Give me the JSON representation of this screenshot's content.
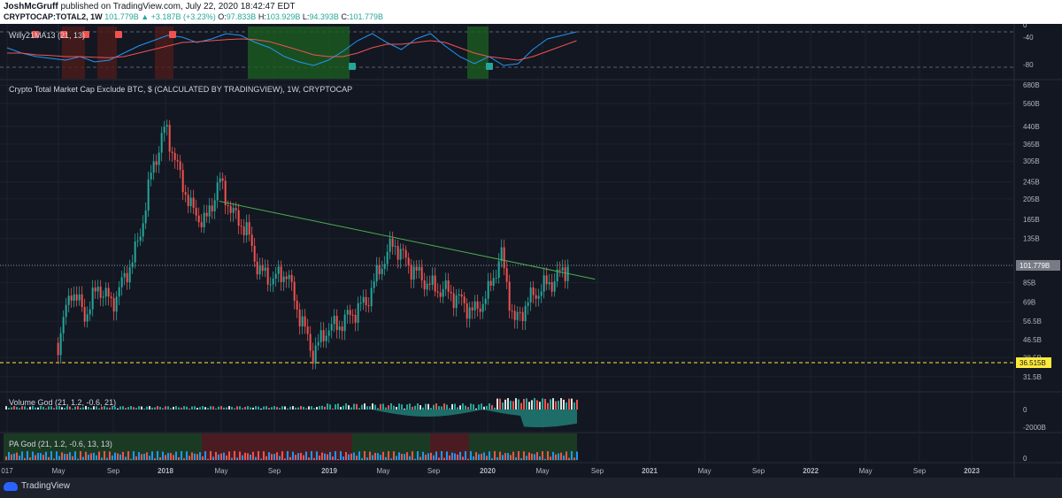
{
  "header": {
    "author": "JoshMcGruff",
    "published": "published on TradingView.com, July 22, 2020 18:42:47 EDT",
    "symbol": "CRYPTOCAP:TOTAL2, 1W",
    "last": "101.779B",
    "change": "▲ +3.187B (+3.23%)",
    "o_label": "O:",
    "o": "97.833B",
    "h_label": "H:",
    "h": "103.929B",
    "l_label": "L:",
    "l": "94.393B",
    "c_label": "C:",
    "c": "101.779B"
  },
  "panes": {
    "willy": {
      "title": "Willy21MA13 (21, 13)",
      "ticks": [
        "0",
        "-40",
        "-80"
      ]
    },
    "main": {
      "title": "Crypto Total Market Cap Exclude BTC, $ (CALCULATED BY TRADINGVIEW), 1W, CRYPTOCAP"
    },
    "volume": {
      "title": "Volume God (21, 1.2, -0.6, 21)",
      "ticks": [
        "0",
        "-2000B"
      ]
    },
    "pa": {
      "title": "PA God (21, 1.2, -0.6, 13, 13)",
      "ticks": [
        "0"
      ]
    }
  },
  "footer": {
    "brand": "TradingView"
  },
  "colors": {
    "up": "#26a69a",
    "down": "#ef5350",
    "trendline": "#4caf50",
    "support": "#ffeb3b",
    "willy_blue": "#2196f3",
    "willy_red": "#ef5350"
  },
  "chart_data": {
    "type": "line",
    "title": "Crypto Total Market Cap Exclude BTC, $ (CALCULATED BY TRADINGVIEW), 1W, CRYPTOCAP",
    "scale": "log",
    "y_unit": "B USD",
    "y_ticks": [
      "680B",
      "560B",
      "440B",
      "365B",
      "305B",
      "245B",
      "205B",
      "165B",
      "135B",
      "101.779B",
      "85B",
      "69B",
      "56.5B",
      "46.5B",
      "38.5B",
      "31.5B"
    ],
    "x_ticks": [
      "017",
      "May",
      "Sep",
      "2018",
      "May",
      "Sep",
      "2019",
      "May",
      "Sep",
      "2020",
      "May",
      "Sep",
      "2021",
      "May",
      "Sep",
      "2022",
      "May",
      "Sep",
      "2023"
    ],
    "current_price": 101.779,
    "support_level": 36.515,
    "support_label": "36.515B",
    "trendline": [
      {
        "date": "2018-05",
        "value": 200
      },
      {
        "date": "2020-09",
        "value": 88
      }
    ],
    "weekly_close": [
      {
        "date": "2017-05",
        "value": 45
      },
      {
        "date": "2017-06",
        "value": 80
      },
      {
        "date": "2017-07",
        "value": 60
      },
      {
        "date": "2017-08",
        "value": 82
      },
      {
        "date": "2017-09",
        "value": 68
      },
      {
        "date": "2017-10",
        "value": 90
      },
      {
        "date": "2017-11",
        "value": 130
      },
      {
        "date": "2017-12",
        "value": 280
      },
      {
        "date": "2018-01",
        "value": 440
      },
      {
        "date": "2018-02",
        "value": 270
      },
      {
        "date": "2018-03",
        "value": 180
      },
      {
        "date": "2018-04",
        "value": 160
      },
      {
        "date": "2018-05",
        "value": 250
      },
      {
        "date": "2018-06",
        "value": 175
      },
      {
        "date": "2018-07",
        "value": 150
      },
      {
        "date": "2018-08",
        "value": 95
      },
      {
        "date": "2018-09",
        "value": 88
      },
      {
        "date": "2018-10",
        "value": 95
      },
      {
        "date": "2018-11",
        "value": 60
      },
      {
        "date": "2018-12",
        "value": 40
      },
      {
        "date": "2019-01",
        "value": 52
      },
      {
        "date": "2019-02",
        "value": 55
      },
      {
        "date": "2019-03",
        "value": 62
      },
      {
        "date": "2019-04",
        "value": 70
      },
      {
        "date": "2019-05",
        "value": 100
      },
      {
        "date": "2019-06",
        "value": 130
      },
      {
        "date": "2019-07",
        "value": 105
      },
      {
        "date": "2019-08",
        "value": 90
      },
      {
        "date": "2019-09",
        "value": 80
      },
      {
        "date": "2019-10",
        "value": 78
      },
      {
        "date": "2019-11",
        "value": 70
      },
      {
        "date": "2019-12",
        "value": 62
      },
      {
        "date": "2020-01",
        "value": 75
      },
      {
        "date": "2020-02",
        "value": 115
      },
      {
        "date": "2020-03",
        "value": 55
      },
      {
        "date": "2020-04",
        "value": 70
      },
      {
        "date": "2020-05",
        "value": 80
      },
      {
        "date": "2020-06",
        "value": 88
      },
      {
        "date": "2020-07",
        "value": 101.779
      }
    ]
  }
}
